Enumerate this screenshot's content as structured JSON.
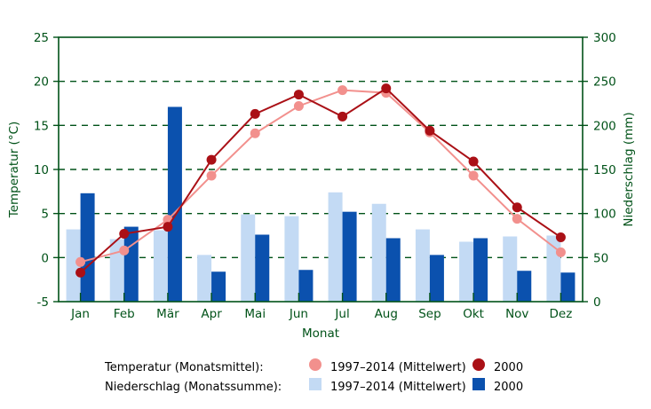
{
  "colors": {
    "green": "#005218",
    "temp_mean": "#F2908D",
    "temp_2000": "#AA1016",
    "precip_mean": "#C3DAF4",
    "precip_2000": "#0B51AE",
    "background": "#FFFFFF"
  },
  "chart_data": {
    "type": "combo-bar-line",
    "categories": [
      "Jan",
      "Feb",
      "Mär",
      "Apr",
      "Mai",
      "Jun",
      "Jul",
      "Aug",
      "Sep",
      "Okt",
      "Nov",
      "Dez"
    ],
    "xlabel": "Monat",
    "left_axis": {
      "label": "Temperatur (°C)",
      "min": -5,
      "max": 25,
      "tick_step": 5,
      "ticks": [
        25,
        20,
        15,
        10,
        5,
        0,
        -5
      ]
    },
    "right_axis": {
      "label": "Niederschlag (mm)",
      "min": 0,
      "max": 300,
      "tick_step": 50,
      "ticks": [
        300,
        250,
        200,
        150,
        100,
        50,
        0
      ]
    },
    "grid": {
      "horizontal": true,
      "style": "dashed"
    },
    "legend_position": "bottom",
    "series": [
      {
        "name": "Niederschlag 1997–2014 (Mittelwert)",
        "type": "bar",
        "axis": "right",
        "color_key": "precip_mean",
        "values": [
          82,
          71,
          81,
          53,
          99,
          97,
          124,
          111,
          82,
          68,
          74,
          75
        ]
      },
      {
        "name": "Niederschlag 2000",
        "type": "bar",
        "axis": "right",
        "color_key": "precip_2000",
        "values": [
          123,
          85,
          221,
          34,
          76,
          36,
          102,
          72,
          53,
          72,
          35,
          33
        ]
      },
      {
        "name": "Temperatur 1997–2014 (Mittelwert)",
        "type": "line",
        "axis": "left",
        "color_key": "temp_mean",
        "values": [
          -0.5,
          0.8,
          4.3,
          9.3,
          14.1,
          17.2,
          19.0,
          18.7,
          14.2,
          9.3,
          4.4,
          0.6
        ]
      },
      {
        "name": "Temperatur 2000",
        "type": "line",
        "axis": "left",
        "color_key": "temp_2000",
        "values": [
          -1.7,
          2.7,
          3.5,
          11.1,
          16.3,
          18.5,
          16.0,
          19.2,
          14.4,
          10.9,
          5.7,
          2.3
        ]
      }
    ]
  },
  "legend": {
    "rows": [
      {
        "label": "Temperatur (Monatsmittel):",
        "entries": [
          {
            "marker": "circle",
            "color_key": "temp_mean",
            "text": "1997–2014 (Mittelwert)"
          },
          {
            "marker": "circle",
            "color_key": "temp_2000",
            "text": "2000"
          }
        ]
      },
      {
        "label": "Niederschlag (Monatssumme):",
        "entries": [
          {
            "marker": "square",
            "color_key": "precip_mean",
            "text": "1997–2014 (Mittelwert)"
          },
          {
            "marker": "square",
            "color_key": "precip_2000",
            "text": "2000"
          }
        ]
      }
    ]
  }
}
